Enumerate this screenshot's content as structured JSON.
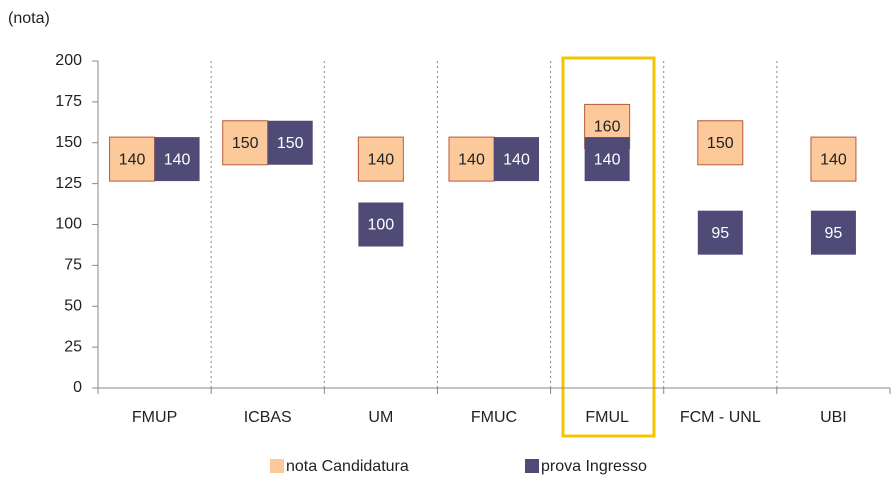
{
  "chart_data": {
    "type": "box-marker",
    "y_label": "(nota)",
    "categories": [
      "FMUP",
      "ICBAS",
      "UM",
      "FMUC",
      "FMUL",
      "FCM - UNL",
      "UBI"
    ],
    "series": [
      {
        "name": "nota Candidatura",
        "color": "#fbc99a",
        "values": [
          140,
          150,
          140,
          140,
          160,
          150,
          140
        ]
      },
      {
        "name": "prova Ingresso",
        "color": "#4f4a76",
        "values": [
          140,
          150,
          100,
          140,
          140,
          95,
          95
        ]
      }
    ],
    "ylim": [
      0,
      200
    ],
    "yticks": [
      0,
      25,
      50,
      75,
      100,
      125,
      150,
      175,
      200
    ],
    "legend": "bottom"
  }
}
